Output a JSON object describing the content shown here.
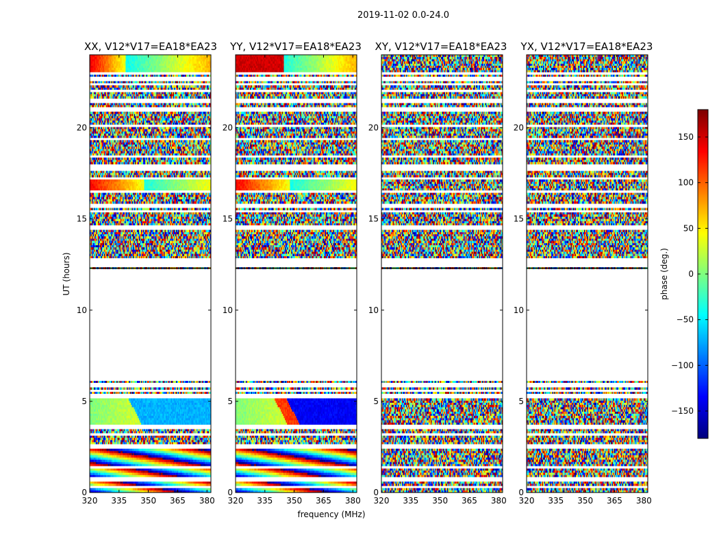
{
  "figure": {
    "suptitle": "2019-11-02 0.0-24.0"
  },
  "chart_data": {
    "type": "heatmap",
    "title": "2019-11-02 0.0-24.0",
    "xlabel": "frequency (MHz)",
    "ylabel": "UT (hours)",
    "xlim": [
      320,
      382
    ],
    "ylim": [
      0,
      24
    ],
    "xticks": [
      320,
      335,
      350,
      365,
      380
    ],
    "yticks": [
      0,
      5,
      10,
      15,
      20
    ],
    "colormap": "jet",
    "colorbar": {
      "label": "phase (deg.)",
      "range": [
        -180,
        180
      ],
      "ticks": [
        -150,
        -100,
        -50,
        0,
        50,
        100,
        150
      ]
    },
    "panels": [
      {
        "title": "XX, V12*V17=EA18*EA23",
        "polarization": "XX",
        "coherent": true
      },
      {
        "title": "YY, V12*V17=EA18*EA23",
        "polarization": "YY",
        "coherent": true
      },
      {
        "title": "XY, V12*V17=EA18*EA23",
        "polarization": "XY",
        "coherent": false
      },
      {
        "title": "YX, V12*V17=EA18*EA23",
        "polarization": "YX",
        "coherent": false
      }
    ],
    "data_gap_hours": [
      6.1,
      12.3
    ],
    "flagged_rows_hours": [
      0.3,
      0.7,
      1.4,
      2.5,
      3.2,
      3.6,
      5.3,
      5.6,
      5.9,
      12.5,
      12.7,
      14.5,
      15.4,
      15.7,
      16.5,
      17.2,
      17.7,
      17.9,
      18.4,
      19.4,
      20.1,
      21.0,
      21.5,
      22.0,
      22.4,
      22.7,
      23.0
    ]
  }
}
